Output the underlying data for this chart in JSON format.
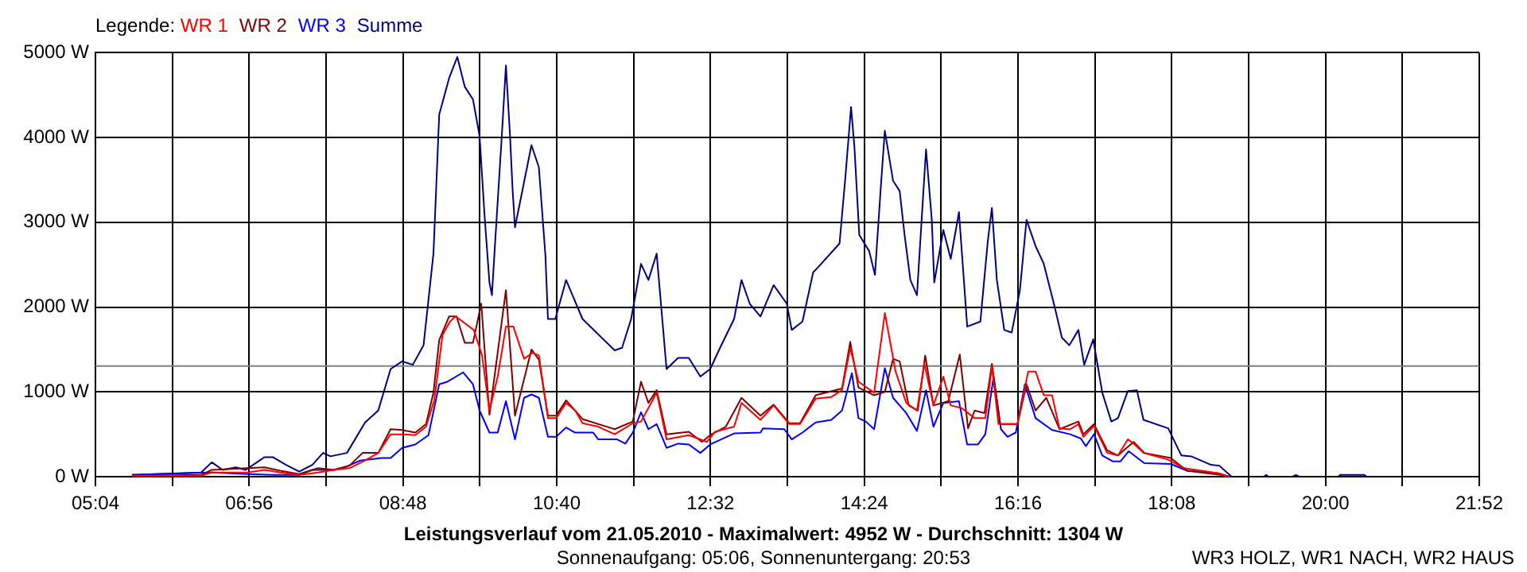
{
  "chart_data": {
    "type": "line",
    "title": "Leistungsverlauf vom 21.05.2010 - Maximalwert: 4952 W - Durchschnitt: 1304 W",
    "subtitle": "Sonnenaufgang: 05:06, Sonnenuntergang: 20:53",
    "annotations": [
      "WR3 HOLZ, WR1 NACH, WR2 HAUS"
    ],
    "legend_title": "Legende:",
    "legend": "top left",
    "grid": true,
    "xlim": [
      5.0667,
      21.8667
    ],
    "xticks": [
      {
        "value": 5.0667,
        "label": "05:04"
      },
      {
        "value": 6.0,
        "label": null
      },
      {
        "value": 6.9333,
        "label": "06:56"
      },
      {
        "value": 7.8667,
        "label": null
      },
      {
        "value": 8.8,
        "label": "08:48"
      },
      {
        "value": 9.7333,
        "label": null
      },
      {
        "value": 10.6667,
        "label": "10:40"
      },
      {
        "value": 11.6,
        "label": null
      },
      {
        "value": 12.5333,
        "label": "12:32"
      },
      {
        "value": 13.4667,
        "label": null
      },
      {
        "value": 14.4,
        "label": "14:24"
      },
      {
        "value": 15.3333,
        "label": null
      },
      {
        "value": 16.2667,
        "label": "16:16"
      },
      {
        "value": 17.2,
        "label": null
      },
      {
        "value": 18.1333,
        "label": "18:08"
      },
      {
        "value": 19.0667,
        "label": null
      },
      {
        "value": 20.0,
        "label": "20:00"
      },
      {
        "value": 20.9333,
        "label": null
      },
      {
        "value": 21.8667,
        "label": "21:52"
      }
    ],
    "ylim": [
      0,
      5000
    ],
    "yticks": [
      {
        "value": 0,
        "label": "0 W"
      },
      {
        "value": 1000,
        "label": "1000 W"
      },
      {
        "value": 2000,
        "label": "2000 W"
      },
      {
        "value": 3000,
        "label": "3000 W"
      },
      {
        "value": 4000,
        "label": "4000 W"
      },
      {
        "value": 5000,
        "label": "5000 W"
      }
    ],
    "ref_lines": [
      {
        "axis": "y",
        "value": 1304,
        "color": "#808080"
      }
    ],
    "series": [
      {
        "name": "WR 1",
        "color": "#ff0000",
        "x": [
          5.51,
          6.35,
          6.48,
          6.91,
          7.12,
          7.31,
          7.54,
          7.77,
          7.96,
          8.15,
          8.34,
          8.5,
          8.65,
          8.79,
          8.95,
          9.08,
          9.18,
          9.28,
          9.37,
          9.44,
          9.66,
          9.76,
          9.85,
          9.95,
          10.05,
          10.14,
          10.27,
          10.37,
          10.45,
          10.56,
          10.66,
          10.78,
          10.89,
          10.98,
          11.17,
          11.37,
          11.59,
          11.69,
          11.88,
          12.0,
          12.27,
          12.49,
          12.59,
          12.82,
          12.91,
          13.14,
          13.3,
          13.49,
          13.62,
          13.81,
          14.0,
          14.13,
          14.23,
          14.33,
          14.52,
          14.65,
          14.78,
          14.91,
          15.04,
          15.13,
          15.24,
          15.36,
          15.45,
          15.58,
          15.74,
          15.87,
          15.95,
          16.03,
          16.26,
          16.39,
          16.48,
          16.58,
          16.68,
          16.77,
          16.9,
          17.0,
          17.06,
          17.19,
          17.35,
          17.48,
          17.6,
          17.67,
          17.79,
          18.09,
          18.28,
          18.7,
          18.83
        ],
        "values": [
          10,
          10,
          50,
          50,
          80,
          50,
          20,
          50,
          80,
          100,
          190,
          280,
          500,
          500,
          490,
          590,
          900,
          1670,
          1830,
          1890,
          1730,
          1430,
          780,
          1180,
          1770,
          1770,
          1390,
          1460,
          1430,
          690,
          690,
          870,
          780,
          630,
          590,
          500,
          630,
          650,
          990,
          440,
          490,
          410,
          530,
          590,
          870,
          670,
          840,
          620,
          620,
          920,
          940,
          1020,
          1520,
          1120,
          990,
          1930,
          1240,
          870,
          780,
          1330,
          840,
          1180,
          840,
          810,
          690,
          690,
          1300,
          620,
          620,
          1240,
          1240,
          960,
          960,
          570,
          560,
          620,
          470,
          600,
          280,
          250,
          440,
          390,
          280,
          200,
          100,
          40,
          0
        ]
      },
      {
        "name": "WR 2",
        "color": "#800000",
        "x": [
          5.51,
          6.35,
          6.48,
          6.91,
          7.12,
          7.31,
          7.54,
          7.77,
          7.96,
          8.15,
          8.31,
          8.5,
          8.65,
          8.79,
          8.95,
          9.08,
          9.17,
          9.24,
          9.36,
          9.45,
          9.55,
          9.65,
          9.75,
          9.85,
          10.05,
          10.16,
          10.36,
          10.45,
          10.56,
          10.66,
          10.78,
          10.98,
          11.37,
          11.59,
          11.69,
          11.78,
          11.88,
          12.0,
          12.27,
          12.43,
          12.53,
          12.72,
          12.91,
          13.14,
          13.3,
          13.49,
          13.62,
          13.81,
          14.13,
          14.23,
          14.33,
          14.52,
          14.65,
          14.75,
          14.83,
          14.94,
          15.05,
          15.14,
          15.24,
          15.42,
          15.56,
          15.66,
          15.74,
          15.86,
          15.95,
          16.05,
          16.26,
          16.37,
          16.48,
          16.61,
          16.77,
          17.0,
          17.06,
          17.19,
          17.35,
          17.48,
          17.67,
          17.8,
          18.12,
          18.32,
          18.73,
          18.83
        ],
        "values": [
          10,
          20,
          80,
          100,
          110,
          70,
          30,
          100,
          80,
          130,
          280,
          280,
          560,
          550,
          520,
          620,
          990,
          1610,
          1890,
          1890,
          1580,
          1580,
          2040,
          730,
          2200,
          720,
          1500,
          1380,
          720,
          720,
          900,
          680,
          560,
          650,
          1120,
          870,
          1020,
          500,
          530,
          410,
          490,
          590,
          930,
          720,
          850,
          630,
          630,
          960,
          1040,
          1590,
          1050,
          960,
          1000,
          1390,
          1360,
          840,
          780,
          1430,
          840,
          890,
          1440,
          570,
          780,
          750,
          1330,
          620,
          620,
          1090,
          780,
          930,
          560,
          650,
          500,
          620,
          310,
          250,
          410,
          280,
          220,
          70,
          20,
          0
        ]
      },
      {
        "name": "WR 3",
        "color": "#0000ff",
        "x": [
          5.51,
          6.48,
          6.91,
          7.22,
          7.54,
          7.7,
          7.96,
          8.12,
          8.28,
          8.54,
          8.65,
          8.79,
          8.95,
          9.11,
          9.24,
          9.34,
          9.53,
          9.65,
          9.73,
          9.85,
          9.95,
          10.05,
          10.16,
          10.27,
          10.36,
          10.45,
          10.56,
          10.66,
          10.78,
          10.89,
          11.11,
          11.17,
          11.4,
          11.5,
          11.59,
          11.69,
          11.78,
          11.88,
          12.0,
          12.14,
          12.27,
          12.41,
          12.53,
          12.82,
          13.14,
          13.17,
          13.43,
          13.52,
          13.65,
          13.81,
          14.0,
          14.13,
          14.25,
          14.33,
          14.42,
          14.52,
          14.65,
          14.75,
          14.91,
          15.04,
          15.15,
          15.24,
          15.36,
          15.55,
          15.65,
          15.78,
          15.87,
          15.97,
          16.06,
          16.14,
          16.24,
          16.35,
          16.48,
          16.68,
          16.9,
          17.03,
          17.09,
          17.19,
          17.29,
          17.42,
          17.51,
          17.61,
          17.8,
          18.12,
          18.32,
          18.7,
          18.83
        ],
        "values": [
          20,
          50,
          30,
          20,
          20,
          80,
          80,
          120,
          190,
          220,
          220,
          340,
          380,
          490,
          1090,
          1120,
          1230,
          1090,
          780,
          520,
          520,
          890,
          440,
          930,
          970,
          930,
          470,
          470,
          580,
          520,
          520,
          440,
          440,
          390,
          520,
          760,
          560,
          620,
          340,
          390,
          380,
          280,
          380,
          510,
          520,
          570,
          560,
          440,
          520,
          640,
          670,
          780,
          1220,
          690,
          650,
          560,
          1280,
          930,
          750,
          540,
          1020,
          590,
          870,
          890,
          380,
          380,
          500,
          1180,
          560,
          470,
          520,
          1090,
          690,
          550,
          500,
          450,
          360,
          500,
          250,
          180,
          180,
          300,
          160,
          150,
          70,
          40,
          0
        ]
      },
      {
        "name": "Summe",
        "color": "#000080",
        "x": [
          5.51,
          6.35,
          6.48,
          6.61,
          6.77,
          6.89,
          7.12,
          7.22,
          7.38,
          7.54,
          7.7,
          7.83,
          7.92,
          8.12,
          8.34,
          8.5,
          8.65,
          8.79,
          8.92,
          9.05,
          9.17,
          9.19,
          9.24,
          9.36,
          9.46,
          9.55,
          9.65,
          9.73,
          9.79,
          9.85,
          9.88,
          9.92,
          10.0,
          10.05,
          10.1,
          10.13,
          10.16,
          10.36,
          10.45,
          10.53,
          10.56,
          10.65,
          10.78,
          10.98,
          11.37,
          11.46,
          11.57,
          11.69,
          11.78,
          11.88,
          12.0,
          12.14,
          12.27,
          12.41,
          12.53,
          12.65,
          12.82,
          12.91,
          13.01,
          13.14,
          13.3,
          13.46,
          13.52,
          13.65,
          13.78,
          13.84,
          14.1,
          14.17,
          14.24,
          14.28,
          14.34,
          14.46,
          14.53,
          14.6,
          14.65,
          14.75,
          14.83,
          14.89,
          14.96,
          15.04,
          15.15,
          15.22,
          15.25,
          15.36,
          15.45,
          15.55,
          15.65,
          15.81,
          15.9,
          15.95,
          16.01,
          16.1,
          16.19,
          16.29,
          16.37,
          16.48,
          16.58,
          16.71,
          16.8,
          16.89,
          17.0,
          17.07,
          17.18,
          17.29,
          17.4,
          17.48,
          17.6,
          17.71,
          17.79,
          18.09,
          18.25,
          18.37,
          18.61,
          18.71,
          18.86,
          19.25,
          19.28,
          19.31,
          19.6,
          19.64,
          19.68,
          20.15,
          20.18,
          20.47,
          20.5
        ],
        "values": [
          20,
          50,
          170,
          80,
          110,
          80,
          230,
          230,
          140,
          60,
          140,
          280,
          240,
          280,
          640,
          780,
          1270,
          1360,
          1320,
          1550,
          2630,
          3090,
          4270,
          4700,
          4950,
          4600,
          4450,
          4020,
          3090,
          2290,
          2140,
          2780,
          4020,
          4850,
          4020,
          3400,
          2940,
          3910,
          3650,
          2600,
          1860,
          1860,
          2320,
          1860,
          1490,
          1520,
          1860,
          2510,
          2320,
          2630,
          1270,
          1400,
          1400,
          1180,
          1270,
          1520,
          1860,
          2320,
          2040,
          1890,
          2260,
          2040,
          1730,
          1830,
          2410,
          2470,
          2750,
          3520,
          4360,
          3900,
          2850,
          2660,
          2380,
          3400,
          4080,
          3490,
          3370,
          2850,
          2320,
          2140,
          3860,
          3030,
          2290,
          2910,
          2570,
          3120,
          1770,
          1830,
          2780,
          3170,
          2320,
          1730,
          1700,
          2200,
          3030,
          2720,
          2510,
          2010,
          1640,
          1550,
          1730,
          1320,
          1620,
          990,
          650,
          690,
          1010,
          1020,
          670,
          570,
          250,
          240,
          140,
          130,
          0,
          0,
          20,
          0,
          0,
          20,
          0,
          0,
          20,
          20,
          0
        ]
      }
    ]
  }
}
